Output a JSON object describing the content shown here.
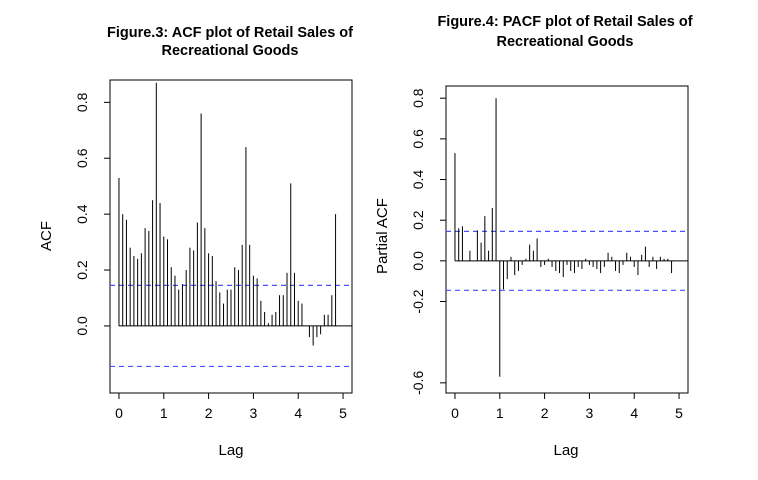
{
  "chart_data": [
    {
      "type": "bar",
      "title_lines": [
        "Figure.3: ACF plot of Retail Sales of",
        "Recreational Goods"
      ],
      "xlabel": "Lag",
      "ylabel": "ACF",
      "xlim": [
        -0.2,
        5.2
      ],
      "ylim": [
        -0.24,
        0.88
      ],
      "xticks": [
        0,
        1,
        2,
        3,
        4,
        5
      ],
      "yticks": [
        0.0,
        0.2,
        0.4,
        0.6,
        0.8
      ],
      "ytick_labels": [
        "0.0",
        "0.2",
        "0.4",
        "0.6",
        "0.8"
      ],
      "confidence_bounds": [
        0.145,
        -0.145
      ],
      "zero_line": true,
      "lag_step": 0.08333,
      "values": [
        0.53,
        0.4,
        0.38,
        0.28,
        0.25,
        0.24,
        0.26,
        0.35,
        0.34,
        0.45,
        0.87,
        0.44,
        0.32,
        0.31,
        0.21,
        0.18,
        0.13,
        0.15,
        0.2,
        0.28,
        0.27,
        0.37,
        0.76,
        0.35,
        0.26,
        0.25,
        0.16,
        0.12,
        0.08,
        0.13,
        0.13,
        0.21,
        0.2,
        0.29,
        0.64,
        0.29,
        0.18,
        0.17,
        0.09,
        0.05,
        0.01,
        0.04,
        0.05,
        0.11,
        0.11,
        0.19,
        0.51,
        0.19,
        0.09,
        0.08,
        0.0,
        -0.04,
        -0.07,
        -0.04,
        -0.03,
        0.04,
        0.04,
        0.11,
        0.4
      ]
    },
    {
      "type": "bar",
      "title_lines": [
        "Figure.4: PACF plot of Retail Sales of",
        "Recreational Goods"
      ],
      "xlabel": "Lag",
      "ylabel": "Partial ACF",
      "xlim": [
        -0.2,
        5.2
      ],
      "ylim": [
        -0.65,
        0.86
      ],
      "xticks": [
        0,
        1,
        2,
        3,
        4,
        5
      ],
      "yticks": [
        -0.6,
        -0.2,
        0.0,
        0.2,
        0.4,
        0.6,
        0.8
      ],
      "ytick_labels": [
        "-0.6",
        "-0.2",
        "0.0",
        "0.2",
        "0.4",
        "0.6",
        "0.8"
      ],
      "confidence_bounds": [
        0.145,
        -0.145
      ],
      "zero_line": true,
      "lag_step": 0.08333,
      "values": [
        0.53,
        0.16,
        0.17,
        0.0,
        0.05,
        0.0,
        0.15,
        0.09,
        0.22,
        0.05,
        0.26,
        0.8,
        -0.57,
        -0.14,
        -0.09,
        0.02,
        -0.07,
        -0.05,
        -0.02,
        0.01,
        0.08,
        0.05,
        0.11,
        -0.03,
        -0.02,
        0.01,
        -0.03,
        -0.05,
        -0.06,
        -0.08,
        -0.02,
        -0.05,
        -0.06,
        -0.03,
        -0.04,
        0.01,
        -0.02,
        -0.03,
        -0.04,
        -0.06,
        -0.03,
        0.04,
        0.02,
        -0.05,
        -0.06,
        -0.02,
        0.04,
        0.02,
        -0.03,
        -0.07,
        0.03,
        0.07,
        -0.03,
        0.02,
        -0.04,
        0.02,
        0.01,
        0.01,
        -0.06
      ]
    }
  ],
  "colors": {
    "bounds": "#4a4fff",
    "bars": "#000000",
    "axes": "#000000"
  }
}
